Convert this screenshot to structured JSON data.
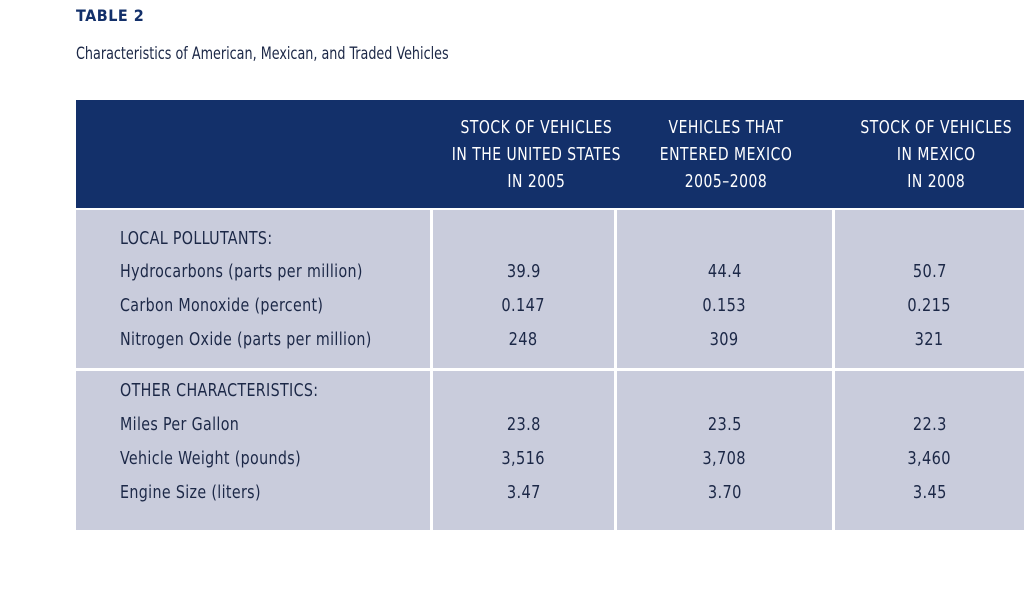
{
  "table_number": "TABLE 2",
  "subtitle": "Characteristics of American, Mexican, and Traded Vehicles",
  "columns": [
    "STOCK OF VEHICLES\nIN THE UNITED STATES\nIN 2005",
    "VEHICLES THAT\nENTERED MEXICO\n2005–2008",
    "STOCK OF VEHICLES\nIN MEXICO\nIN 2008"
  ],
  "sections": [
    {
      "heading": "LOCAL POLLUTANTS:",
      "rows": [
        {
          "label": "Hydrocarbons (parts per million)",
          "values": [
            "39.9",
            "44.4",
            "50.7"
          ]
        },
        {
          "label": "Carbon Monoxide (percent)",
          "values": [
            "0.147",
            "0.153",
            "0.215"
          ]
        },
        {
          "label": "Nitrogen Oxide (parts per million)",
          "values": [
            "248",
            "309",
            "321"
          ]
        }
      ]
    },
    {
      "heading": "OTHER CHARACTERISTICS:",
      "rows": [
        {
          "label": "Miles Per Gallon",
          "values": [
            "23.8",
            "23.5",
            "22.3"
          ]
        },
        {
          "label": "Vehicle Weight (pounds)",
          "values": [
            "3,516",
            "3,708",
            "3,460"
          ]
        },
        {
          "label": "Engine Size (liters)",
          "values": [
            "3.47",
            "3.70",
            "3.45"
          ]
        }
      ]
    }
  ],
  "colors": {
    "header_bg": "#13306a",
    "header_text": "#ffffff",
    "cell_bg": "#c9ccdc",
    "body_text": "#1c2847"
  }
}
